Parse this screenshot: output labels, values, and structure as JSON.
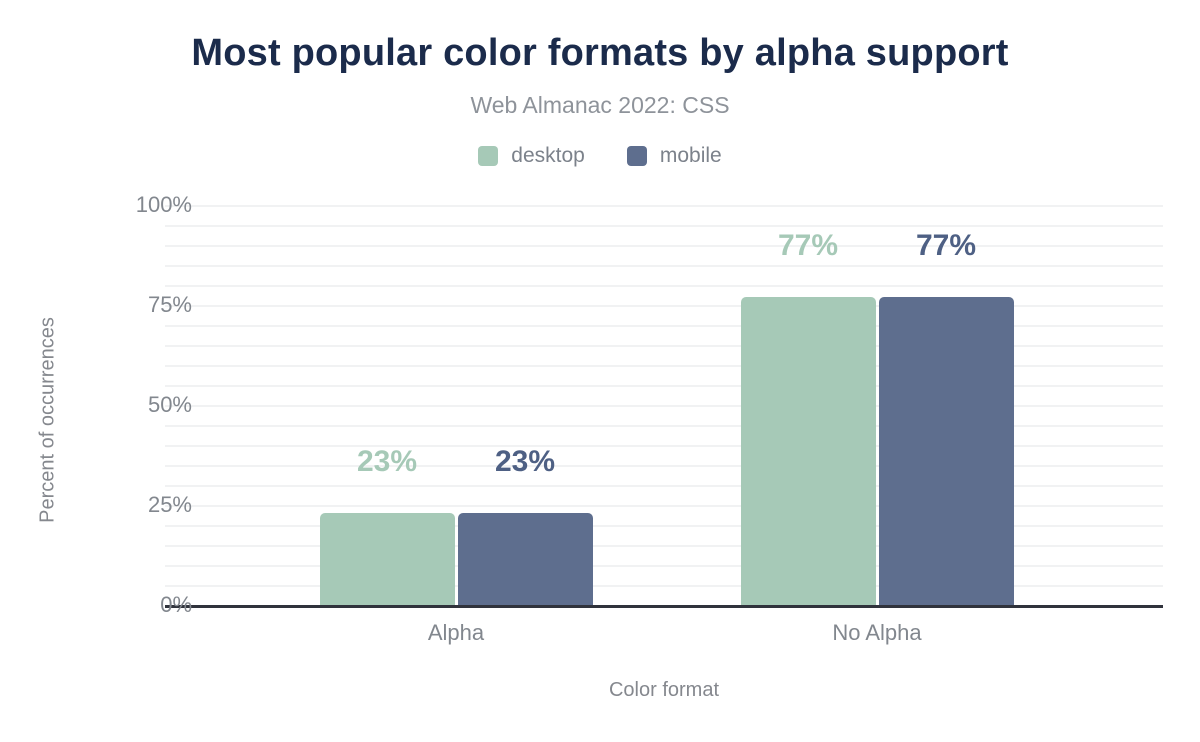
{
  "title": "Most popular color formats by alpha support",
  "subtitle": "Web Almanac 2022: CSS",
  "legend": [
    {
      "label": "desktop",
      "color": "#a6c9b7"
    },
    {
      "label": "mobile",
      "color": "#5e6e8e"
    }
  ],
  "axes": {
    "ylabel": "Percent of occurrences",
    "xlabel": "Color format",
    "yticks": [
      "0%",
      "25%",
      "50%",
      "75%",
      "100%"
    ]
  },
  "chart_data": {
    "type": "bar",
    "title": "Most popular color formats by alpha support",
    "subtitle": "Web Almanac 2022: CSS",
    "categories": [
      "Alpha",
      "No Alpha"
    ],
    "series": [
      {
        "name": "desktop",
        "values": [
          23,
          77
        ],
        "labels": [
          "23%",
          "77%"
        ],
        "color": "#a6c9b7",
        "label_color": "#a6c9b7"
      },
      {
        "name": "mobile",
        "values": [
          23,
          77
        ],
        "labels": [
          "23%",
          "77%"
        ],
        "color": "#5e6e8e",
        "label_color": "#4e6084"
      }
    ],
    "xlabel": "Color format",
    "ylabel": "Percent of occurrences",
    "ylim": [
      0,
      100
    ],
    "ytick_labels": [
      "0%",
      "25%",
      "50%",
      "75%",
      "100%"
    ],
    "grid": "horizontal, minor lines every 5%, light gray",
    "legend_position": "top-center",
    "colors": {
      "title": "#1b2b4b",
      "subtitle": "#8e939a",
      "tick_text": "#82878e",
      "gridline": "#f1f2f3",
      "axis_line": "#30333c",
      "background": "#ffffff"
    }
  }
}
